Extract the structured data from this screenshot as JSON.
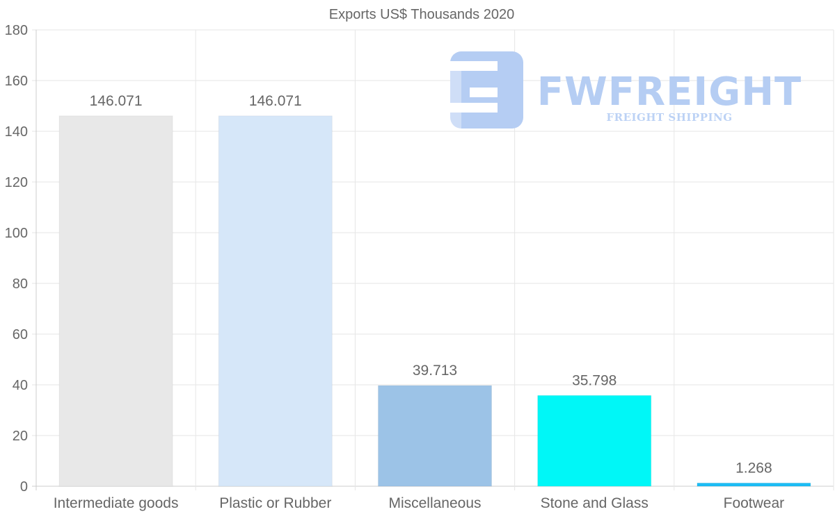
{
  "chart_data": {
    "type": "bar",
    "title": "Exports US$ Thousands 2020",
    "categories": [
      "Intermediate goods",
      "Plastic or Rubber",
      "Miscellaneous",
      "Stone and Glass",
      "Footwear"
    ],
    "values": [
      146.071,
      146.071,
      39.713,
      35.798,
      1.268
    ],
    "value_labels": [
      "146.071",
      "146.071",
      "39.713",
      "35.798",
      "1.268"
    ],
    "colors": [
      "#e8e8e8",
      "#d6e7f9",
      "#9cc3e7",
      "#00f7f7",
      "#1cbdf5"
    ],
    "ylim": [
      0,
      180
    ],
    "yticks": [
      0,
      20,
      40,
      60,
      80,
      100,
      120,
      140,
      160,
      180
    ],
    "grid": true,
    "xlabel": "",
    "ylabel": ""
  },
  "watermark": {
    "brand": "FWFREIGHT",
    "tagline": "FREIGHT SHIPPING"
  }
}
